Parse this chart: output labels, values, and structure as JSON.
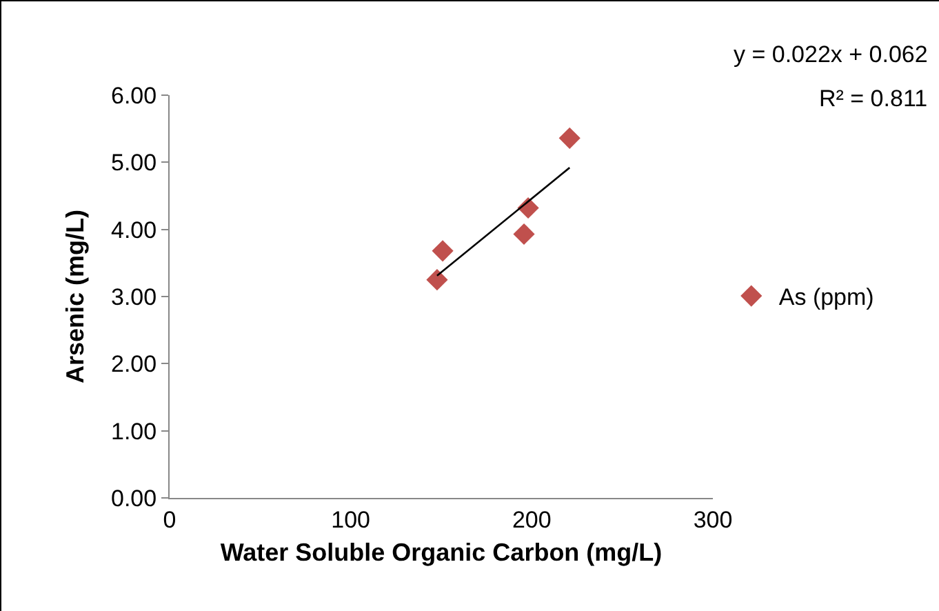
{
  "chart_data": {
    "type": "scatter",
    "xlabel": "Water Soluble Organic Carbon (mg/L)",
    "ylabel": "Arsenic (mg/L)",
    "series": [
      {
        "name": "As (ppm)",
        "color": "#c0504d",
        "marker": "diamond",
        "x": [
          147.7,
          150.8,
          195.7,
          198,
          220.9
        ],
        "values": [
          3.25,
          3.68,
          3.93,
          4.32,
          5.36
        ]
      },
      {
        "type": "line",
        "color": "#000000",
        "marker": "none",
        "x": [
          147.7,
          220.9
        ],
        "values": [
          3.31,
          4.92
        ]
      }
    ],
    "xlim": [
      0,
      300
    ],
    "xticks": [
      0,
      100,
      200,
      300
    ],
    "ylim": [
      0,
      6
    ],
    "yticks": [
      {
        "value": 0,
        "label": "0.00"
      },
      {
        "value": 1,
        "label": "1.00"
      },
      {
        "value": 2,
        "label": "2.00"
      },
      {
        "value": 3,
        "label": "3.00"
      },
      {
        "value": 4,
        "label": "4.00"
      },
      {
        "value": 5,
        "label": "5.00"
      },
      {
        "value": 6,
        "label": "6.00"
      }
    ],
    "grid": false,
    "legend": "right",
    "annotations": [
      "y = 0.022x + 0.062",
      "R² = 0.811"
    ]
  }
}
